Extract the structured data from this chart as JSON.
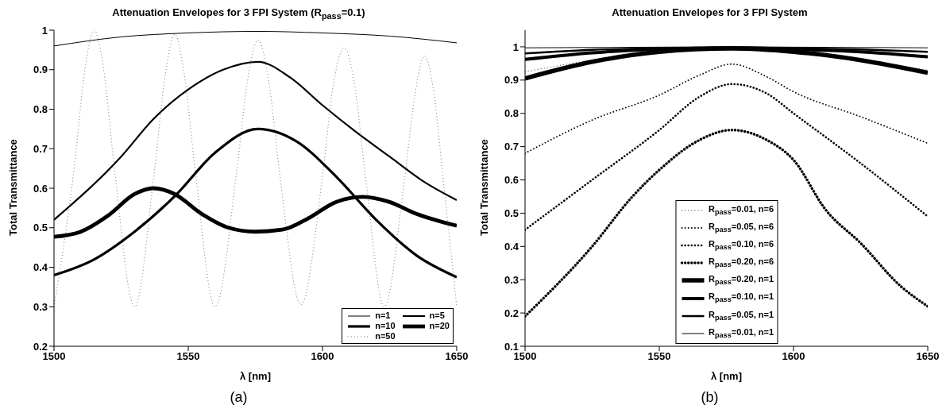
{
  "chart_data": [
    {
      "type": "line",
      "title": "Attenuation Envelopes for 3 FPI System (R$_{pass}$=0.1)",
      "xlabel": "λ [nm]",
      "ylabel": "Total Transmittance",
      "xlim": [
        1500,
        1650
      ],
      "xticks": [
        1500,
        1550,
        1600,
        1650
      ],
      "ylim": [
        0.2,
        1
      ],
      "yticks": [
        0.2,
        0.3,
        0.4,
        0.5,
        0.6,
        0.7,
        0.8,
        0.9,
        1
      ],
      "legend": "bottom right",
      "annotations": [
        "(a)"
      ],
      "series": [
        {
          "name": "n=1",
          "color": "#000000",
          "line_style": "solid",
          "x": [
            1500,
            1525,
            1550,
            1576,
            1600,
            1625,
            1650
          ],
          "values": [
            0.96,
            0.983,
            0.993,
            0.997,
            0.993,
            0.985,
            0.968
          ]
        },
        {
          "name": "n=5",
          "color": "#000000",
          "line_style": "solid",
          "x": [
            1500,
            1525,
            1537,
            1550,
            1563,
            1576,
            1588,
            1600,
            1612,
            1625,
            1637,
            1650
          ],
          "values": [
            0.52,
            0.68,
            0.775,
            0.85,
            0.9,
            0.92,
            0.88,
            0.81,
            0.745,
            0.68,
            0.62,
            0.57
          ]
        },
        {
          "name": "n=10",
          "color": "#000000",
          "line_style": "solid",
          "x": [
            1500,
            1515,
            1530,
            1545,
            1560,
            1576,
            1590,
            1605,
            1620,
            1635,
            1650
          ],
          "values": [
            0.38,
            0.42,
            0.49,
            0.58,
            0.69,
            0.75,
            0.72,
            0.63,
            0.52,
            0.43,
            0.375
          ]
        },
        {
          "name": "n=20",
          "color": "#000000",
          "line_style": "solid",
          "x": [
            1500,
            1510,
            1520,
            1530,
            1537,
            1545,
            1555,
            1565,
            1575,
            1585,
            1595,
            1605,
            1615,
            1625,
            1635,
            1650
          ],
          "values": [
            0.477,
            0.49,
            0.53,
            0.585,
            0.6,
            0.585,
            0.535,
            0.5,
            0.49,
            0.495,
            0.525,
            0.565,
            0.578,
            0.565,
            0.535,
            0.505
          ]
        },
        {
          "name": "n=50",
          "color": "#555555",
          "line_style": "dotted",
          "x": [
            1500,
            1507.5,
            1511.5,
            1515,
            1518.5,
            1522.5,
            1530,
            1537.5,
            1541.5,
            1545,
            1548.5,
            1552.5,
            1560,
            1568,
            1572,
            1576,
            1580,
            1584,
            1592,
            1600,
            1604,
            1608,
            1612,
            1616,
            1623,
            1630.5,
            1634.5,
            1638,
            1641.5,
            1645,
            1650
          ],
          "values": [
            0.3,
            0.65,
            0.9,
            1,
            0.9,
            0.65,
            0.3,
            0.65,
            0.89,
            0.99,
            0.89,
            0.65,
            0.3,
            0.64,
            0.87,
            0.975,
            0.87,
            0.64,
            0.305,
            0.63,
            0.86,
            0.955,
            0.86,
            0.63,
            0.3,
            0.62,
            0.84,
            0.935,
            0.84,
            0.62,
            0.3
          ]
        }
      ]
    },
    {
      "type": "line",
      "title": "Attenuation Envelopes for 3 FPI System",
      "xlabel": "λ [nm]",
      "ylabel": "Total Transmittance",
      "xlim": [
        1500,
        1650
      ],
      "xticks": [
        1500,
        1550,
        1600,
        1650
      ],
      "ylim": [
        0.1,
        1.05
      ],
      "yticks": [
        0.1,
        0.2,
        0.3,
        0.4,
        0.5,
        0.6,
        0.7,
        0.8,
        0.9,
        1
      ],
      "legend": "bottom",
      "annotations": [
        "(b)"
      ],
      "series": [
        {
          "name": "R$_{pass}$=0.01, n=6",
          "color": "#000000",
          "line_style": "dotted",
          "x": [
            1500,
            1525,
            1550,
            1577,
            1600,
            1625,
            1650
          ],
          "values": [
            0.925,
            0.96,
            0.985,
            0.993,
            0.985,
            0.96,
            0.93
          ]
        },
        {
          "name": "R$_{pass}$=0.05, n=6",
          "color": "#000000",
          "line_style": "dotted",
          "x": [
            1500,
            1525,
            1550,
            1565,
            1577,
            1590,
            1600,
            1625,
            1650
          ],
          "values": [
            0.68,
            0.78,
            0.855,
            0.915,
            0.948,
            0.91,
            0.865,
            0.79,
            0.71
          ]
        },
        {
          "name": "R$_{pass}$=0.10, n=6",
          "color": "#000000",
          "line_style": "dotted",
          "x": [
            1500,
            1525,
            1550,
            1565,
            1577,
            1590,
            1600,
            1625,
            1650
          ],
          "values": [
            0.45,
            0.6,
            0.75,
            0.85,
            0.888,
            0.86,
            0.8,
            0.65,
            0.49
          ]
        },
        {
          "name": "R$_{pass}$=0.20, n=6",
          "color": "#000000",
          "line_style": "dotted",
          "x": [
            1500,
            1525,
            1540,
            1550,
            1565,
            1577,
            1590,
            1600,
            1612,
            1625,
            1640,
            1650
          ],
          "values": [
            0.19,
            0.4,
            0.55,
            0.63,
            0.72,
            0.75,
            0.72,
            0.66,
            0.51,
            0.41,
            0.28,
            0.22
          ]
        },
        {
          "name": "R$_{pass}$=0.20, n=1",
          "color": "#000000",
          "line_style": "solid",
          "x": [
            1500,
            1525,
            1550,
            1577,
            1600,
            1625,
            1650
          ],
          "values": [
            0.905,
            0.955,
            0.985,
            0.995,
            0.985,
            0.96,
            0.922
          ]
        },
        {
          "name": "R$_{pass}$=0.10, n=1",
          "color": "#000000",
          "line_style": "solid",
          "x": [
            1500,
            1525,
            1550,
            1577,
            1600,
            1625,
            1650
          ],
          "values": [
            0.962,
            0.982,
            0.993,
            0.996,
            0.993,
            0.985,
            0.97
          ]
        },
        {
          "name": "R$_{pass}$=0.05, n=1",
          "color": "#000000",
          "line_style": "solid",
          "x": [
            1500,
            1525,
            1550,
            1577,
            1600,
            1625,
            1650
          ],
          "values": [
            0.98,
            0.991,
            0.996,
            0.998,
            0.996,
            0.992,
            0.985
          ]
        },
        {
          "name": "R$_{pass}$=0.01, n=1",
          "color": "#000000",
          "line_style": "solid",
          "x": [
            1500,
            1550,
            1577,
            1600,
            1650
          ],
          "values": [
            0.997,
            0.999,
            1,
            0.999,
            0.997
          ]
        }
      ]
    }
  ]
}
